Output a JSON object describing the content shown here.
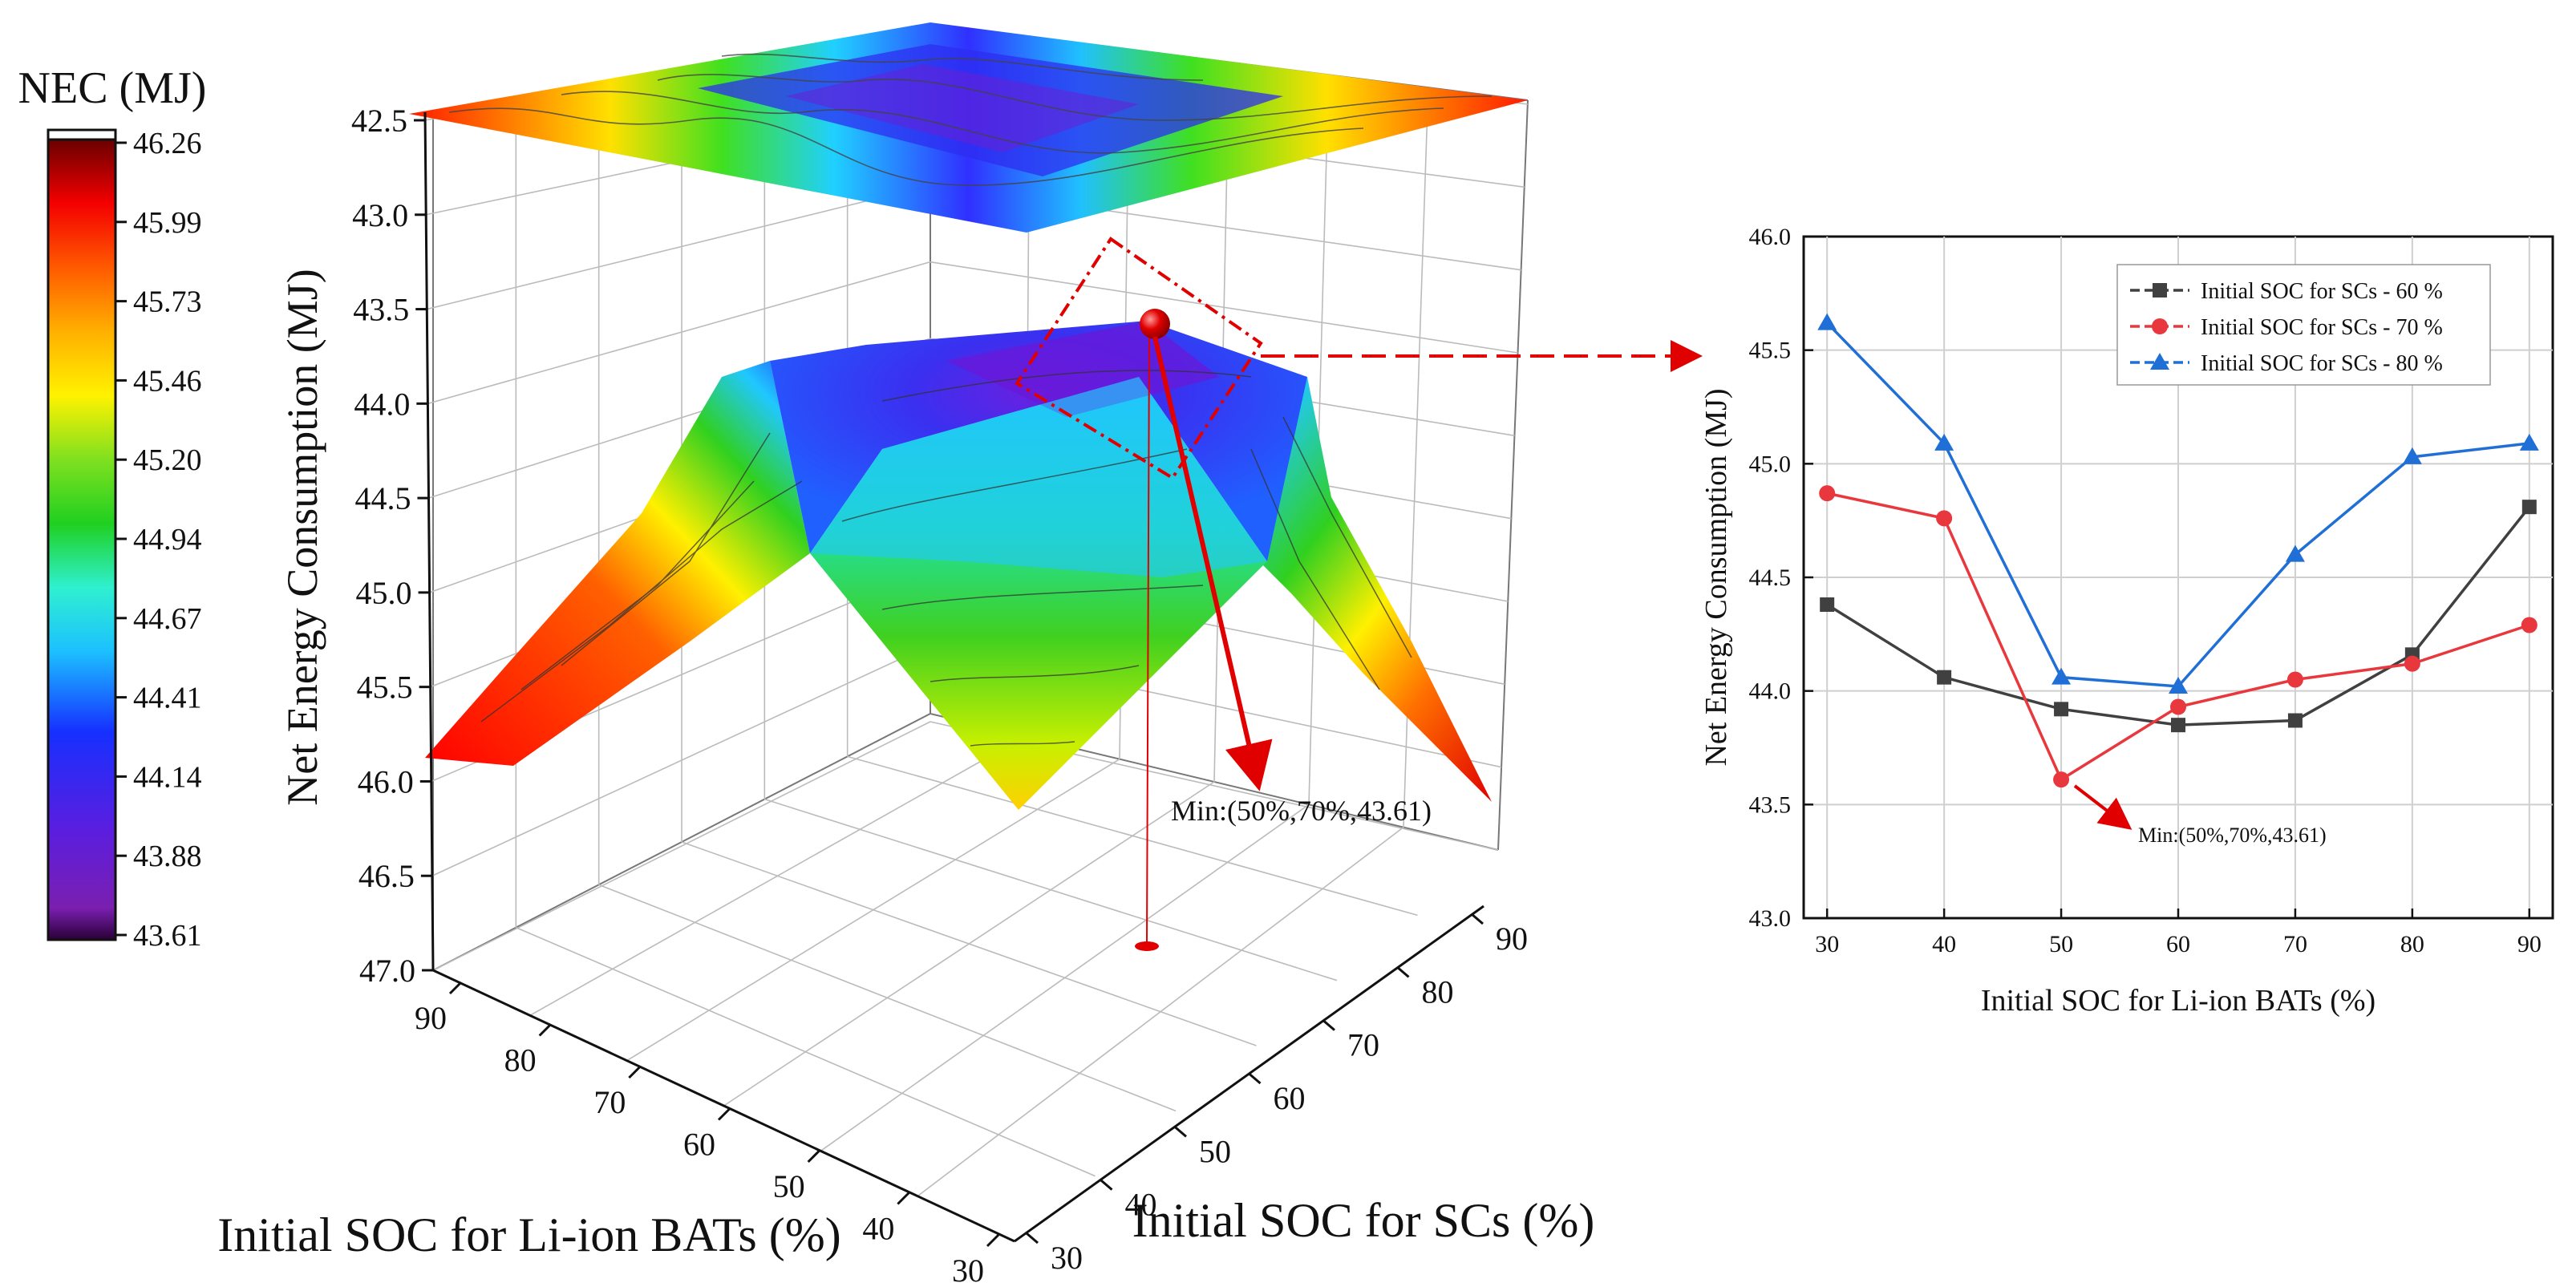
{
  "colorbar": {
    "title": "NEC (MJ)",
    "ticks": [
      "46.26",
      "45.99",
      "45.73",
      "45.46",
      "45.20",
      "44.94",
      "44.67",
      "44.41",
      "44.14",
      "43.88",
      "43.61"
    ]
  },
  "surface3d": {
    "z_label": "Net Energy Consumption (MJ)",
    "z_ticks": [
      "42.5",
      "43.0",
      "43.5",
      "44.0",
      "44.5",
      "45.0",
      "45.5",
      "46.0",
      "46.5",
      "47.0"
    ],
    "x_label": "Initial SOC for Li-ion BATs (%)",
    "x_ticks": [
      "90",
      "80",
      "70",
      "60",
      "50",
      "40",
      "30"
    ],
    "y_label": "Initial SOC for SCs (%)",
    "y_ticks": [
      "30",
      "40",
      "50",
      "60",
      "70",
      "80",
      "90"
    ],
    "annotation": "Min:(50%,70%,43.61)"
  },
  "chart_data": {
    "type": "line",
    "xlabel": "Initial SOC for Li-ion BATs (%)",
    "ylabel": "Net Energy Consumption (MJ)",
    "x": [
      30,
      40,
      50,
      60,
      70,
      80,
      90
    ],
    "xlim": [
      28,
      92
    ],
    "ylim": [
      43.0,
      46.0
    ],
    "y_ticks": [
      "43.0",
      "43.5",
      "44.0",
      "44.5",
      "45.0",
      "45.5",
      "46.0"
    ],
    "x_ticks": [
      "30",
      "40",
      "50",
      "60",
      "70",
      "80",
      "90"
    ],
    "grid": true,
    "legend_position": "top-right",
    "series": [
      {
        "name": "Initial SOC for SCs - 60 %",
        "marker": "square",
        "color": "#404040",
        "values": [
          44.38,
          44.06,
          43.92,
          43.85,
          43.87,
          44.16,
          44.81
        ]
      },
      {
        "name": "Initial SOC for SCs - 70 %",
        "marker": "circle",
        "color": "#e8383d",
        "values": [
          44.87,
          44.76,
          43.61,
          43.93,
          44.05,
          44.12,
          44.29
        ]
      },
      {
        "name": "Initial SOC for SCs - 80 %",
        "marker": "triangle",
        "color": "#1f6fd6",
        "values": [
          45.62,
          45.09,
          44.06,
          44.02,
          44.6,
          45.03,
          45.09
        ]
      }
    ],
    "annotation": "Min:(50%,70%,43.61)"
  }
}
